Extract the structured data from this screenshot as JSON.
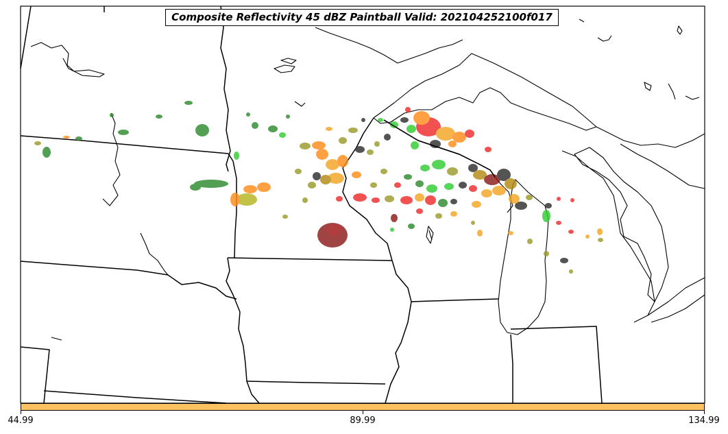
{
  "title": "Composite Reflectivity 45 dBZ Paintball Valid: 202104252100f017",
  "colorbar": {
    "color": "#ffc261",
    "ticks": [
      "44.99",
      "89.99",
      "134.99"
    ]
  },
  "member_colors": [
    "#2e8b2e",
    "#32cd32",
    "#ff8c1a",
    "#f5a623",
    "#ee2c2c",
    "#8b1a1a",
    "#2f2f2f",
    "#9a9a2a",
    "#b38b12"
  ],
  "map": {
    "region": "Upper Midwest / Great Lakes",
    "borders": "state and coastline outlines"
  }
}
